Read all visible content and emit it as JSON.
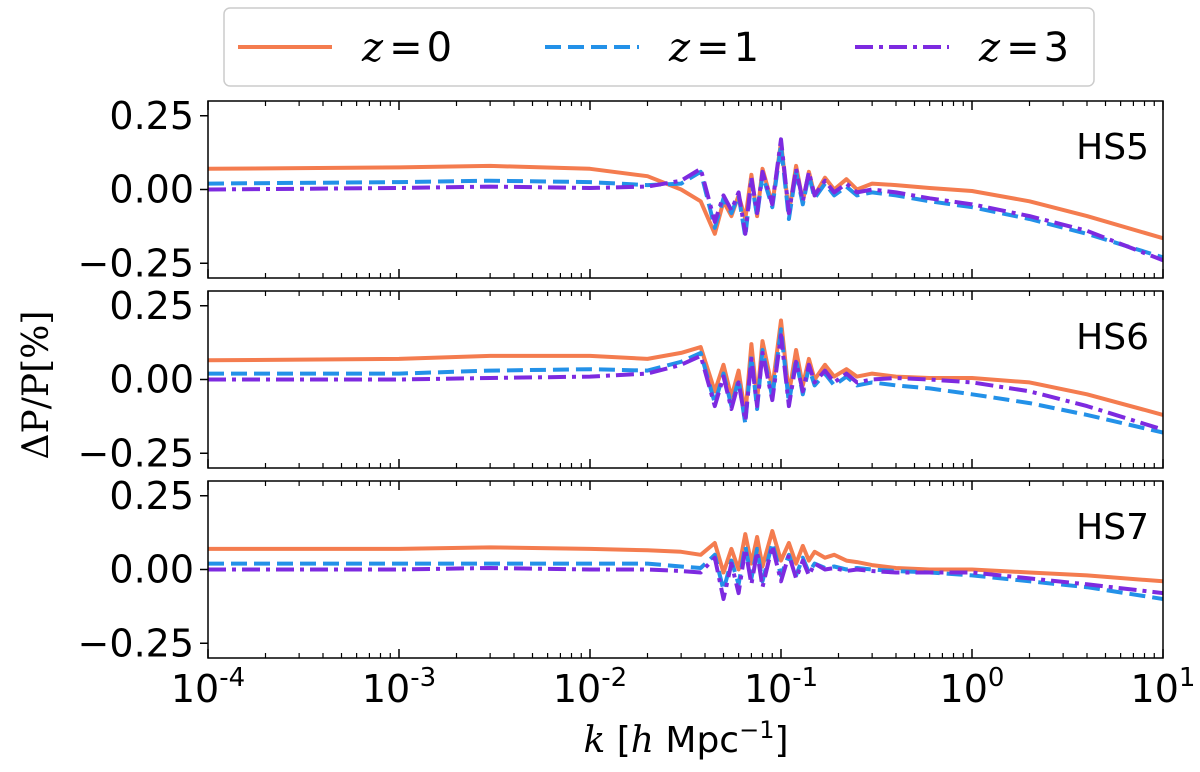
{
  "chart_data": {
    "type": "line",
    "layout": "3 stacked panels sharing the x axis",
    "xscale": "log",
    "xlim": [
      0.0001,
      10
    ],
    "ylim": [
      -0.3,
      0.3
    ],
    "xlabel": {
      "var": "k",
      "open": "[",
      "h": "h",
      "unit": "Mpc",
      "exp": "−1",
      "close": "]"
    },
    "ylabel": "ΔP/P[%]",
    "xticks": [
      {
        "base": "10",
        "exp": "-4",
        "value": 0.0001
      },
      {
        "base": "10",
        "exp": "-3",
        "value": 0.001
      },
      {
        "base": "10",
        "exp": "-2",
        "value": 0.01
      },
      {
        "base": "10",
        "exp": "-1",
        "value": 0.1
      },
      {
        "base": "10",
        "exp": "0",
        "value": 1
      },
      {
        "base": "10",
        "exp": "1",
        "value": 10
      }
    ],
    "yticks": [
      {
        "label": "0.25",
        "value": 0.25
      },
      {
        "label": "0.00",
        "value": 0.0
      },
      {
        "label": "−0.25",
        "value": -0.25
      }
    ],
    "legend": {
      "placement": "top-center, above panels",
      "entries": [
        {
          "label": "z = 0",
          "var": "z",
          "eq": "=",
          "num": "0",
          "color": "#f47c4f",
          "dash": "solid"
        },
        {
          "label": "z = 1",
          "var": "z",
          "eq": "=",
          "num": "1",
          "color": "#2391e8",
          "dash": "dashed"
        },
        {
          "label": "z = 3",
          "var": "z",
          "eq": "=",
          "num": "3",
          "color": "#7d2ae0",
          "dash": "dashdot"
        }
      ]
    },
    "panels": [
      {
        "label": "HS5",
        "series": [
          {
            "name": "z = 0",
            "x": [
              0.0001,
              0.001,
              0.003,
              0.01,
              0.02,
              0.03,
              0.038,
              0.045,
              0.05,
              0.055,
              0.06,
              0.065,
              0.07,
              0.075,
              0.08,
              0.09,
              0.1,
              0.11,
              0.12,
              0.13,
              0.14,
              0.15,
              0.17,
              0.19,
              0.22,
              0.25,
              0.3,
              0.4,
              0.6,
              1,
              2,
              4,
              10
            ],
            "y": [
              0.07,
              0.075,
              0.08,
              0.07,
              0.045,
              0.0,
              -0.04,
              -0.15,
              -0.04,
              -0.09,
              -0.02,
              -0.1,
              0.05,
              -0.09,
              0.07,
              -0.05,
              0.16,
              -0.08,
              0.08,
              -0.04,
              0.06,
              -0.02,
              0.04,
              0.0,
              0.035,
              0.0,
              0.02,
              0.015,
              0.005,
              -0.005,
              -0.04,
              -0.09,
              -0.165
            ]
          },
          {
            "name": "z = 1",
            "x": [
              0.0001,
              0.001,
              0.003,
              0.01,
              0.02,
              0.03,
              0.038,
              0.045,
              0.05,
              0.055,
              0.06,
              0.065,
              0.07,
              0.075,
              0.08,
              0.09,
              0.1,
              0.11,
              0.12,
              0.13,
              0.14,
              0.15,
              0.17,
              0.19,
              0.22,
              0.25,
              0.3,
              0.4,
              0.6,
              1,
              2,
              4,
              10
            ],
            "y": [
              0.02,
              0.025,
              0.03,
              0.025,
              0.015,
              0.02,
              0.06,
              -0.13,
              -0.03,
              -0.08,
              -0.02,
              -0.16,
              0.03,
              -0.09,
              0.05,
              -0.06,
              0.15,
              -0.1,
              0.06,
              -0.05,
              0.05,
              -0.03,
              0.02,
              -0.02,
              0.01,
              -0.02,
              -0.01,
              -0.02,
              -0.04,
              -0.06,
              -0.1,
              -0.15,
              -0.23
            ]
          },
          {
            "name": "z = 3",
            "x": [
              0.0001,
              0.001,
              0.003,
              0.01,
              0.02,
              0.03,
              0.038,
              0.045,
              0.05,
              0.055,
              0.06,
              0.065,
              0.07,
              0.075,
              0.08,
              0.09,
              0.1,
              0.11,
              0.12,
              0.13,
              0.14,
              0.15,
              0.17,
              0.19,
              0.22,
              0.25,
              0.3,
              0.4,
              0.6,
              1,
              2,
              4,
              10
            ],
            "y": [
              0.0,
              0.005,
              0.01,
              0.005,
              0.01,
              0.03,
              0.07,
              -0.11,
              -0.02,
              -0.07,
              -0.01,
              -0.15,
              0.04,
              -0.08,
              0.06,
              -0.05,
              0.17,
              -0.08,
              0.07,
              -0.04,
              0.06,
              -0.02,
              0.03,
              -0.01,
              0.02,
              -0.01,
              0.0,
              -0.01,
              -0.03,
              -0.05,
              -0.09,
              -0.14,
              -0.24
            ]
          }
        ]
      },
      {
        "label": "HS6",
        "series": [
          {
            "name": "z = 0",
            "x": [
              0.0001,
              0.001,
              0.003,
              0.01,
              0.02,
              0.03,
              0.038,
              0.045,
              0.05,
              0.055,
              0.06,
              0.065,
              0.07,
              0.075,
              0.08,
              0.09,
              0.1,
              0.11,
              0.12,
              0.13,
              0.14,
              0.15,
              0.17,
              0.19,
              0.22,
              0.25,
              0.3,
              0.4,
              0.6,
              1,
              2,
              4,
              10
            ],
            "y": [
              0.065,
              0.07,
              0.08,
              0.08,
              0.07,
              0.09,
              0.11,
              -0.04,
              0.05,
              -0.06,
              0.03,
              -0.12,
              0.12,
              -0.07,
              0.13,
              -0.03,
              0.2,
              -0.05,
              0.1,
              -0.02,
              0.07,
              0.0,
              0.05,
              0.01,
              0.035,
              0.01,
              0.02,
              0.01,
              0.005,
              0.005,
              -0.01,
              -0.05,
              -0.12
            ]
          },
          {
            "name": "z = 1",
            "x": [
              0.0001,
              0.001,
              0.003,
              0.01,
              0.02,
              0.03,
              0.038,
              0.045,
              0.05,
              0.055,
              0.06,
              0.065,
              0.07,
              0.075,
              0.08,
              0.09,
              0.1,
              0.11,
              0.12,
              0.13,
              0.14,
              0.15,
              0.17,
              0.19,
              0.22,
              0.25,
              0.3,
              0.4,
              0.6,
              1,
              2,
              4,
              10
            ],
            "y": [
              0.02,
              0.02,
              0.03,
              0.035,
              0.03,
              0.06,
              0.09,
              -0.08,
              0.02,
              -0.09,
              0.0,
              -0.15,
              0.08,
              -0.1,
              0.1,
              -0.06,
              0.17,
              -0.08,
              0.07,
              -0.05,
              0.04,
              -0.02,
              0.02,
              -0.02,
              0.01,
              -0.02,
              -0.01,
              -0.02,
              -0.03,
              -0.05,
              -0.08,
              -0.12,
              -0.18
            ]
          },
          {
            "name": "z = 3",
            "x": [
              0.0001,
              0.001,
              0.003,
              0.01,
              0.02,
              0.03,
              0.038,
              0.045,
              0.05,
              0.055,
              0.06,
              0.065,
              0.07,
              0.075,
              0.08,
              0.09,
              0.1,
              0.11,
              0.12,
              0.13,
              0.14,
              0.15,
              0.17,
              0.19,
              0.22,
              0.25,
              0.3,
              0.4,
              0.6,
              1,
              2,
              4,
              10
            ],
            "y": [
              0.0,
              0.0,
              0.005,
              0.01,
              0.02,
              0.05,
              0.08,
              -0.09,
              0.01,
              -0.1,
              -0.01,
              -0.14,
              0.07,
              -0.09,
              0.09,
              -0.07,
              0.15,
              -0.09,
              0.06,
              -0.04,
              0.05,
              -0.01,
              0.03,
              -0.01,
              0.02,
              -0.01,
              0.0,
              0.005,
              0.0,
              -0.01,
              -0.04,
              -0.09,
              -0.17
            ]
          }
        ]
      },
      {
        "label": "HS7",
        "series": [
          {
            "name": "z = 0",
            "x": [
              0.0001,
              0.001,
              0.003,
              0.01,
              0.02,
              0.03,
              0.038,
              0.045,
              0.05,
              0.055,
              0.06,
              0.065,
              0.07,
              0.075,
              0.08,
              0.09,
              0.1,
              0.11,
              0.12,
              0.13,
              0.14,
              0.15,
              0.17,
              0.19,
              0.22,
              0.25,
              0.3,
              0.4,
              0.6,
              1,
              2,
              4,
              10
            ],
            "y": [
              0.07,
              0.07,
              0.075,
              0.07,
              0.065,
              0.06,
              0.05,
              0.09,
              -0.01,
              0.07,
              0.0,
              0.12,
              0.02,
              0.11,
              0.01,
              0.13,
              0.03,
              0.09,
              0.02,
              0.08,
              0.03,
              0.06,
              0.04,
              0.05,
              0.03,
              0.025,
              0.015,
              0.005,
              0.0,
              0.0,
              -0.01,
              -0.02,
              -0.04
            ]
          },
          {
            "name": "z = 1",
            "x": [
              0.0001,
              0.001,
              0.003,
              0.01,
              0.02,
              0.03,
              0.038,
              0.045,
              0.05,
              0.055,
              0.06,
              0.065,
              0.07,
              0.075,
              0.08,
              0.09,
              0.1,
              0.11,
              0.12,
              0.13,
              0.14,
              0.15,
              0.17,
              0.19,
              0.22,
              0.25,
              0.3,
              0.4,
              0.6,
              1,
              2,
              4,
              10
            ],
            "y": [
              0.02,
              0.02,
              0.02,
              0.02,
              0.02,
              0.01,
              0.005,
              0.05,
              -0.07,
              0.03,
              -0.05,
              0.08,
              -0.03,
              0.07,
              -0.04,
              0.09,
              -0.02,
              0.05,
              -0.02,
              0.04,
              -0.01,
              0.02,
              0.005,
              0.01,
              0.0,
              0.005,
              0.0,
              -0.005,
              -0.01,
              -0.02,
              -0.04,
              -0.06,
              -0.1
            ]
          },
          {
            "name": "z = 3",
            "x": [
              0.0001,
              0.001,
              0.003,
              0.01,
              0.02,
              0.03,
              0.038,
              0.045,
              0.05,
              0.055,
              0.06,
              0.065,
              0.07,
              0.075,
              0.08,
              0.09,
              0.1,
              0.11,
              0.12,
              0.13,
              0.14,
              0.15,
              0.17,
              0.19,
              0.22,
              0.25,
              0.3,
              0.4,
              0.6,
              1,
              2,
              4,
              10
            ],
            "y": [
              0.0,
              0.0,
              0.005,
              0.0,
              0.0,
              -0.005,
              -0.01,
              0.04,
              -0.1,
              0.02,
              -0.08,
              0.07,
              -0.05,
              0.06,
              -0.06,
              0.08,
              -0.04,
              0.05,
              -0.03,
              0.03,
              -0.02,
              0.02,
              0.0,
              0.005,
              -0.005,
              0.0,
              -0.005,
              -0.01,
              -0.01,
              -0.01,
              -0.03,
              -0.05,
              -0.08
            ]
          }
        ]
      }
    ]
  }
}
